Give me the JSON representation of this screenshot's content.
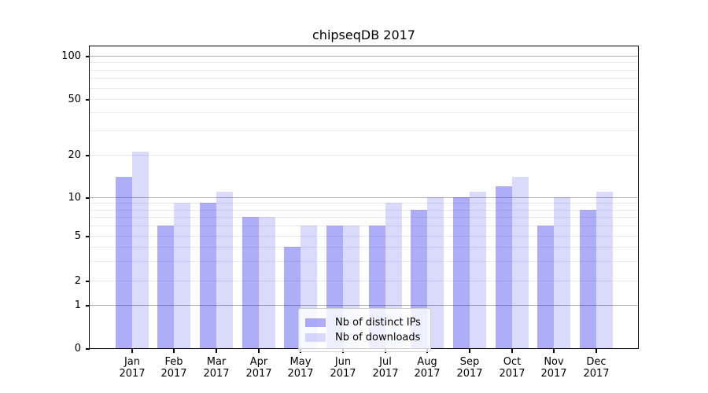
{
  "chart_data": {
    "type": "bar",
    "title": "chipseqDB 2017",
    "yscale": "symlog (log above 1, compressed linear segment 0-1)",
    "categories": [
      "Jan",
      "Feb",
      "Mar",
      "Apr",
      "May",
      "Jun",
      "Jul",
      "Aug",
      "Sep",
      "Oct",
      "Nov",
      "Dec"
    ],
    "x_year_suffix": "2017",
    "series": [
      {
        "name": "Nb of distinct IPs",
        "color": "rgba(10,10,235,0.33)",
        "values": [
          14,
          6,
          9,
          7,
          4,
          6,
          6,
          8,
          10,
          12,
          6,
          8
        ]
      },
      {
        "name": "Nb of downloads",
        "color": "rgba(10,10,235,0.15)",
        "values": [
          21,
          9,
          11,
          7,
          6,
          6,
          9,
          10,
          11,
          14,
          10,
          11
        ]
      }
    ],
    "ytick_labels": [
      "0",
      "1",
      "2",
      "5",
      "10",
      "20",
      "50",
      "100"
    ],
    "ytick_values": [
      0,
      1,
      2,
      5,
      10,
      20,
      50,
      100
    ],
    "minor_grid_values": [
      2,
      3,
      4,
      5,
      6,
      7,
      8,
      9,
      20,
      30,
      40,
      50,
      60,
      70,
      80,
      90
    ],
    "major_grid_values": [
      1,
      10,
      100
    ],
    "ylim": [
      0,
      130
    ],
    "grid": {
      "major_color": "#b0b0b0",
      "minor_color": "#e9e9ec"
    },
    "legend_position": "inside lower-center",
    "background_color": "#ffffff"
  }
}
